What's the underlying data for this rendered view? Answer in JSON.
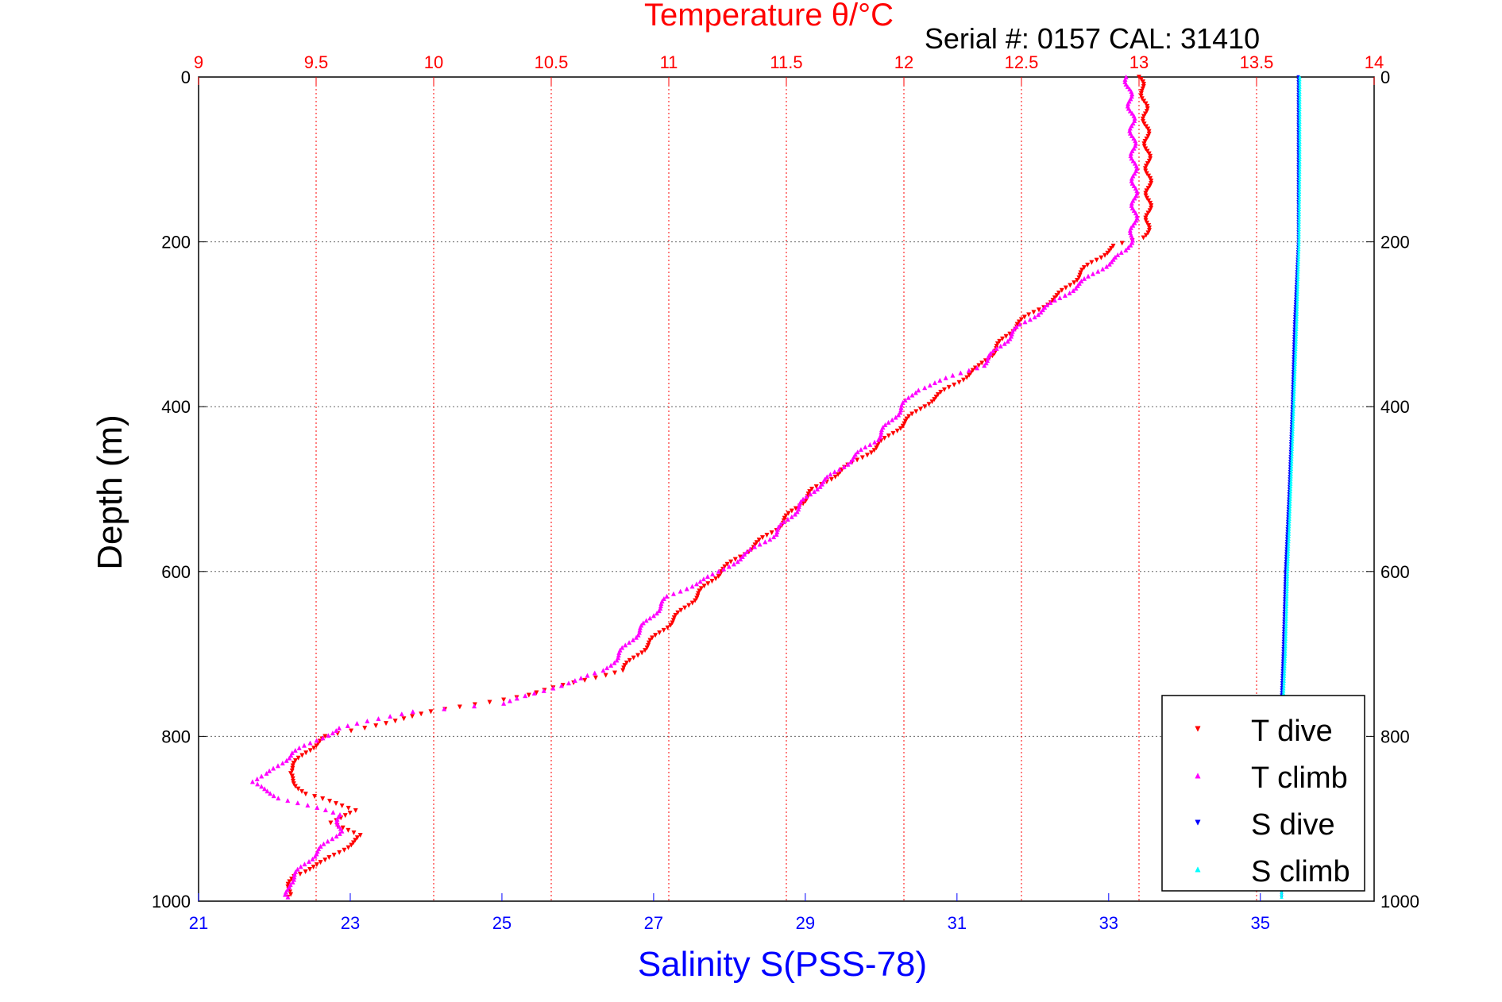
{
  "chart_data": {
    "type": "scatter",
    "title": "Temperature θ/°C",
    "subtitle": "Serial #: 0157  CAL: 31410",
    "ylabel": "Depth (m)",
    "xlabel": "Salinity S(PSS-78)",
    "ylim": [
      1000,
      0
    ],
    "temperature_axis": {
      "range": [
        9,
        14
      ],
      "ticks": [
        9,
        9.5,
        10,
        10.5,
        11,
        11.5,
        12,
        12.5,
        13,
        13.5,
        14
      ],
      "tick_labels": [
        "9",
        "9.5",
        "10",
        "10.5",
        "11",
        "11.5",
        "12",
        "12.5",
        "13",
        "13.5",
        "14"
      ]
    },
    "salinity_axis": {
      "range": [
        21,
        36.5
      ],
      "ticks": [
        21,
        23,
        25,
        27,
        29,
        31,
        33,
        35
      ],
      "tick_labels": [
        "21",
        "23",
        "25",
        "27",
        "29",
        "31",
        "33",
        "35"
      ]
    },
    "depth_axis": {
      "ticks": [
        0,
        200,
        400,
        600,
        800,
        1000
      ],
      "tick_labels": [
        "0",
        "200",
        "400",
        "600",
        "800",
        "1000"
      ]
    },
    "grid": true,
    "legend_position": "bottom-right",
    "series": [
      {
        "name": "T dive",
        "axis": "temperature",
        "marker": "triangle-down",
        "color": "#ff0000",
        "points": [
          [
            13.0,
            0
          ],
          [
            13.02,
            20
          ],
          [
            13.03,
            60
          ],
          [
            13.04,
            120
          ],
          [
            13.04,
            180
          ],
          [
            13.02,
            195
          ],
          [
            12.9,
            205
          ],
          [
            12.8,
            225
          ],
          [
            12.66,
            265
          ],
          [
            12.48,
            300
          ],
          [
            12.33,
            350
          ],
          [
            12.08,
            400
          ],
          [
            11.88,
            450
          ],
          [
            11.62,
            500
          ],
          [
            11.45,
            550
          ],
          [
            11.22,
            600
          ],
          [
            11.05,
            650
          ],
          [
            10.8,
            720
          ],
          [
            10.4,
            750
          ],
          [
            10.0,
            770
          ],
          [
            9.7,
            790
          ],
          [
            9.55,
            800
          ],
          [
            9.45,
            820
          ],
          [
            9.38,
            845
          ],
          [
            9.45,
            870
          ],
          [
            9.68,
            890
          ],
          [
            9.55,
            905
          ],
          [
            9.7,
            920
          ],
          [
            9.55,
            950
          ],
          [
            9.4,
            970
          ],
          [
            9.38,
            995
          ]
        ]
      },
      {
        "name": "T climb",
        "axis": "temperature",
        "marker": "triangle-up",
        "color": "#ff00ff",
        "points": [
          [
            12.95,
            0
          ],
          [
            12.97,
            50
          ],
          [
            12.98,
            120
          ],
          [
            12.98,
            180
          ],
          [
            12.95,
            210
          ],
          [
            12.85,
            230
          ],
          [
            12.68,
            265
          ],
          [
            12.5,
            300
          ],
          [
            12.33,
            350
          ],
          [
            12.05,
            380
          ],
          [
            11.88,
            440
          ],
          [
            11.62,
            500
          ],
          [
            11.45,
            555
          ],
          [
            11.22,
            600
          ],
          [
            11.0,
            630
          ],
          [
            10.85,
            680
          ],
          [
            10.73,
            720
          ],
          [
            10.3,
            760
          ],
          [
            9.9,
            770
          ],
          [
            9.6,
            790
          ],
          [
            9.4,
            820
          ],
          [
            9.3,
            845
          ],
          [
            9.22,
            855
          ],
          [
            9.35,
            875
          ],
          [
            9.6,
            895
          ],
          [
            9.6,
            915
          ],
          [
            9.45,
            955
          ],
          [
            9.38,
            980
          ],
          [
            9.38,
            995
          ]
        ]
      },
      {
        "name": "S dive",
        "axis": "salinity",
        "marker": "triangle-down",
        "color": "#0000ff",
        "points": [
          [
            35.5,
            0
          ],
          [
            35.5,
            100
          ],
          [
            35.5,
            200
          ],
          [
            35.45,
            300
          ],
          [
            35.42,
            400
          ],
          [
            35.38,
            500
          ],
          [
            35.33,
            600
          ],
          [
            35.3,
            700
          ],
          [
            35.28,
            750
          ],
          [
            35.28,
            800
          ],
          [
            35.28,
            900
          ],
          [
            35.28,
            995
          ]
        ]
      },
      {
        "name": "S climb",
        "axis": "salinity",
        "marker": "triangle-up",
        "color": "#00ffff",
        "points": [
          [
            35.52,
            0
          ],
          [
            35.52,
            100
          ],
          [
            35.51,
            200
          ],
          [
            35.48,
            300
          ],
          [
            35.44,
            400
          ],
          [
            35.4,
            500
          ],
          [
            35.36,
            600
          ],
          [
            35.33,
            700
          ],
          [
            35.3,
            760
          ],
          [
            35.29,
            800
          ],
          [
            35.28,
            900
          ],
          [
            35.28,
            995
          ]
        ]
      }
    ]
  }
}
